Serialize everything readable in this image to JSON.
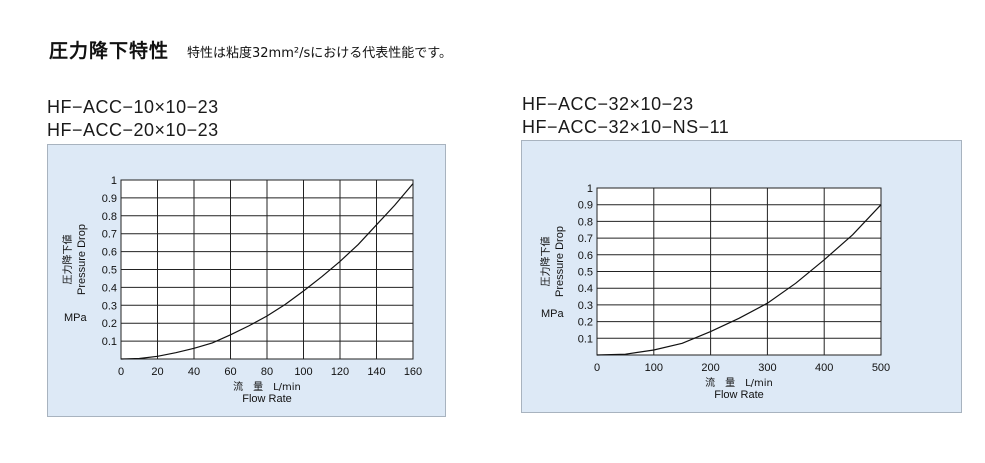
{
  "header": {
    "title": "圧力降下特性",
    "subtitle": "特性は粘度32mm²/sにおける代表性能です。"
  },
  "left": {
    "model_lines": [
      "HF−ACC−10×10−23",
      "HF−ACC−20×10−23"
    ]
  },
  "right": {
    "model_lines": [
      "HF−ACC−32×10−23",
      "HF−ACC−32×10−NS−11"
    ]
  },
  "chart_data": [
    {
      "type": "line",
      "xlabel_ja": "流　量　L/min",
      "xlabel_en": "Flow Rate",
      "ylabel_ja": "圧力降下値",
      "ylabel_en": "Pressure Drop",
      "yunit": "MPa",
      "xlim": [
        0,
        160
      ],
      "ylim": [
        0,
        1.0
      ],
      "xticks": [
        0,
        20,
        40,
        60,
        80,
        100,
        120,
        140,
        160
      ],
      "yticks": [
        0.1,
        0.2,
        0.3,
        0.4,
        0.5,
        0.6,
        0.7,
        0.8,
        0.9,
        1.0
      ],
      "grid": true,
      "series": [
        {
          "x": [
            0,
            10,
            20,
            30,
            40,
            50,
            60,
            70,
            80,
            90,
            100,
            110,
            120,
            130,
            140,
            150,
            160
          ],
          "y": [
            0,
            0.003,
            0.015,
            0.035,
            0.06,
            0.09,
            0.135,
            0.185,
            0.24,
            0.305,
            0.38,
            0.46,
            0.545,
            0.64,
            0.75,
            0.86,
            0.98
          ]
        }
      ]
    },
    {
      "type": "line",
      "xlabel_ja": "流　量　L/min",
      "xlabel_en": "Flow Rate",
      "ylabel_ja": "圧力降下値",
      "ylabel_en": "Pressure Drop",
      "yunit": "MPa",
      "xlim": [
        0,
        500
      ],
      "ylim": [
        0,
        1.0
      ],
      "xticks": [
        0,
        100,
        200,
        300,
        400,
        500
      ],
      "yticks": [
        0.1,
        0.2,
        0.3,
        0.4,
        0.5,
        0.6,
        0.7,
        0.8,
        0.9,
        1.0
      ],
      "grid": true,
      "series": [
        {
          "x": [
            0,
            50,
            100,
            150,
            200,
            250,
            300,
            350,
            400,
            450,
            500
          ],
          "y": [
            0,
            0.005,
            0.03,
            0.07,
            0.14,
            0.22,
            0.31,
            0.43,
            0.57,
            0.72,
            0.9
          ]
        }
      ]
    }
  ]
}
